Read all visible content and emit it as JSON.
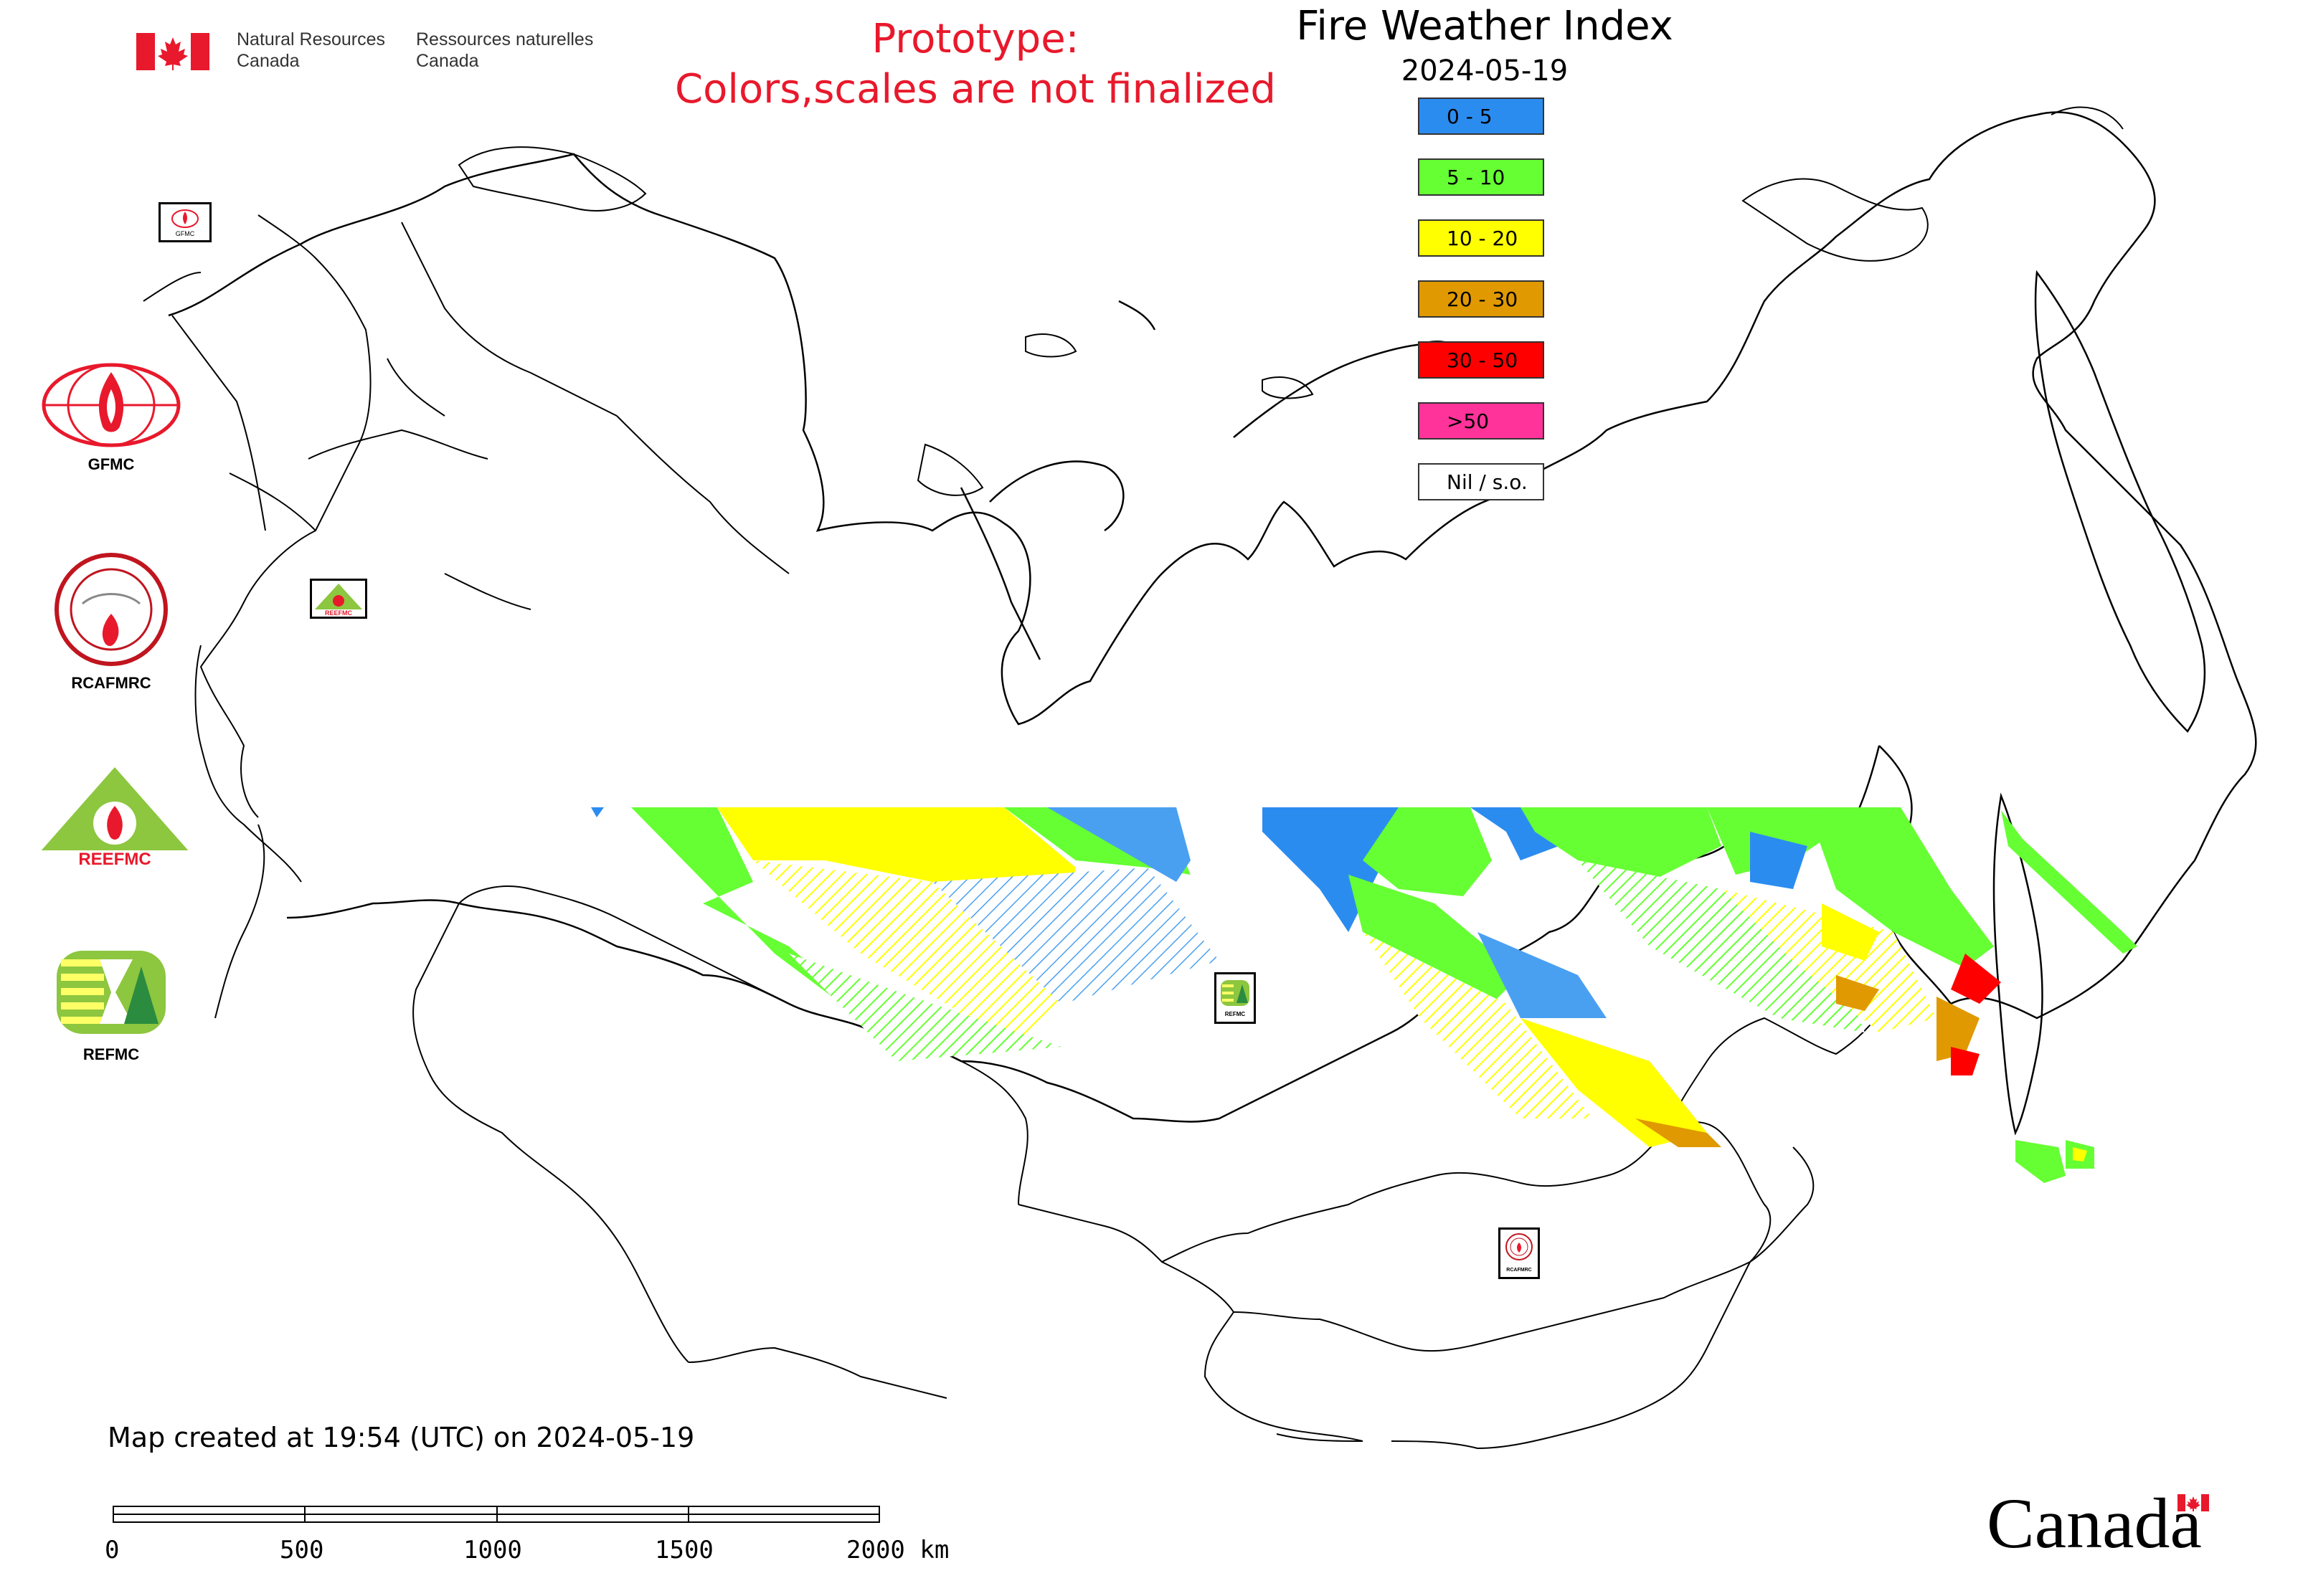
{
  "header": {
    "nrcan_en": "Natural Resources\nCanada",
    "nrcan_fr": "Ressources naturelles\nCanada",
    "prototype_line1": "Prototype:",
    "prototype_line2": "Colors,scales are not finalized"
  },
  "map": {
    "title": "Fire Weather Index",
    "date": "2024-05-19",
    "legend": [
      {
        "label": "0 - 5",
        "color": "#2b8cf0"
      },
      {
        "label": "5 - 10",
        "color": "#66ff33"
      },
      {
        "label": "10 - 20",
        "color": "#ffff00"
      },
      {
        "label": "20 - 30",
        "color": "#e09900"
      },
      {
        "label": "30 - 50",
        "color": "#ff0000"
      },
      {
        "label": ">50",
        "color": "#ff3399"
      },
      {
        "label": "Nil / s.o.",
        "color": "#ffffff"
      }
    ]
  },
  "agencies": [
    {
      "name": "GFMC",
      "icon": "gfmc-logo"
    },
    {
      "name": "RCAFMRC",
      "icon": "rcafmrc-logo"
    },
    {
      "name": "REEFMC",
      "icon": "reefmc-logo"
    },
    {
      "name": "REFMC",
      "icon": "refmc-logo"
    }
  ],
  "badges": {
    "gfmc": "GFMC",
    "reefmc": "REEFMC",
    "refmc": "REFMC",
    "rcafmrc": "RCAFMRC"
  },
  "footer": {
    "created": "Map created at 19:54 (UTC) on 2024-05-19",
    "scale_labels": [
      "0",
      "500",
      "1000",
      "1500",
      "2000 km"
    ],
    "wordmark": "Canada"
  }
}
